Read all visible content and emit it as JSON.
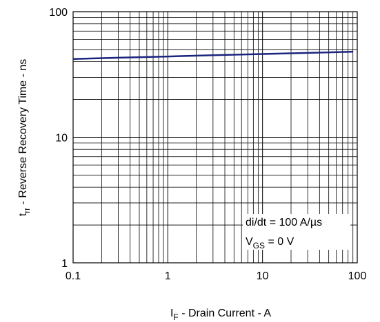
{
  "chart_data": {
    "type": "line",
    "title": "",
    "xscale": "log",
    "yscale": "log",
    "xlim": [
      0.1,
      100
    ],
    "ylim": [
      1,
      100
    ],
    "grid": true,
    "xlabel": {
      "main": "I",
      "sub": "F",
      "rest": " - Drain Current - A"
    },
    "ylabel": {
      "main": "t",
      "sub": "rr",
      "rest": " - Reverse Recovery Time - ns"
    },
    "x_tick_labels": [
      "0.1",
      "1",
      "10",
      "100"
    ],
    "y_tick_labels": [
      "1",
      "10",
      "100"
    ],
    "series": [
      {
        "color": "#1a237e",
        "points": [
          [
            0.1,
            42
          ],
          [
            0.3,
            43
          ],
          [
            1,
            44
          ],
          [
            3,
            45
          ],
          [
            10,
            46
          ],
          [
            30,
            47
          ],
          [
            90,
            48
          ]
        ]
      }
    ],
    "annotations": [
      {
        "line": 1,
        "text": "di/dt = 100 A/µs"
      },
      {
        "line": 2,
        "main": "V",
        "sub": "GS",
        "rest": " = 0 V"
      }
    ]
  }
}
